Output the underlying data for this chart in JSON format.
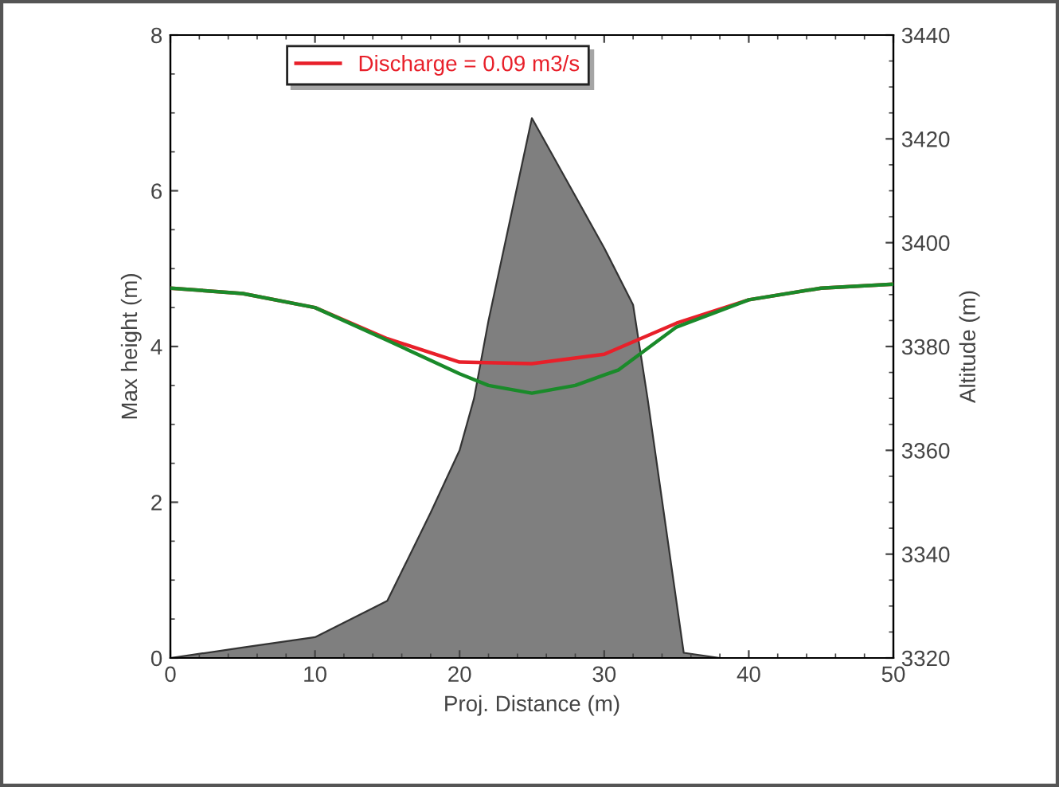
{
  "chart_data": {
    "type": "line",
    "xlabel": "Proj. Distance (m)",
    "ylabel": "Max height (m)",
    "y2label": "Altitude (m)",
    "series": [
      {
        "type": "area",
        "axis": "y2",
        "color": "#7f7f7f",
        "x": [
          0,
          5,
          10,
          15,
          18,
          20,
          21,
          22,
          25,
          28,
          30,
          32,
          33,
          35.5,
          38,
          40,
          50
        ],
        "values": [
          3320,
          3322,
          3324,
          3331,
          3348,
          3360,
          3370,
          3385,
          3424,
          3409,
          3399,
          3388,
          3370,
          3321,
          3320,
          3320,
          3320
        ]
      },
      {
        "name": "Discharge = 0.09 m3/s",
        "color": "#e8202a",
        "x": [
          0,
          5,
          10,
          15,
          20,
          25,
          30,
          35,
          40,
          45,
          50
        ],
        "values": [
          4.75,
          4.68,
          4.5,
          4.1,
          3.8,
          3.78,
          3.9,
          4.3,
          4.6,
          4.75,
          4.8
        ]
      },
      {
        "color": "#1a8a2a",
        "x": [
          0,
          5,
          10,
          15,
          20,
          22,
          25,
          28,
          31,
          35,
          40,
          45,
          50
        ],
        "values": [
          4.75,
          4.68,
          4.5,
          4.08,
          3.65,
          3.5,
          3.4,
          3.5,
          3.7,
          4.25,
          4.6,
          4.75,
          4.8
        ]
      }
    ],
    "xlim": [
      0,
      50
    ],
    "xticks": [
      0,
      10,
      20,
      30,
      40,
      50
    ],
    "ylim": [
      0,
      8
    ],
    "yticks": [
      0,
      2,
      4,
      6,
      8
    ],
    "y2lim": [
      3320,
      3440
    ],
    "y2ticks": [
      3320,
      3340,
      3360,
      3380,
      3400,
      3420,
      3440
    ],
    "grid": false,
    "legend": "top",
    "marker": "none",
    "line_style": "solid"
  }
}
